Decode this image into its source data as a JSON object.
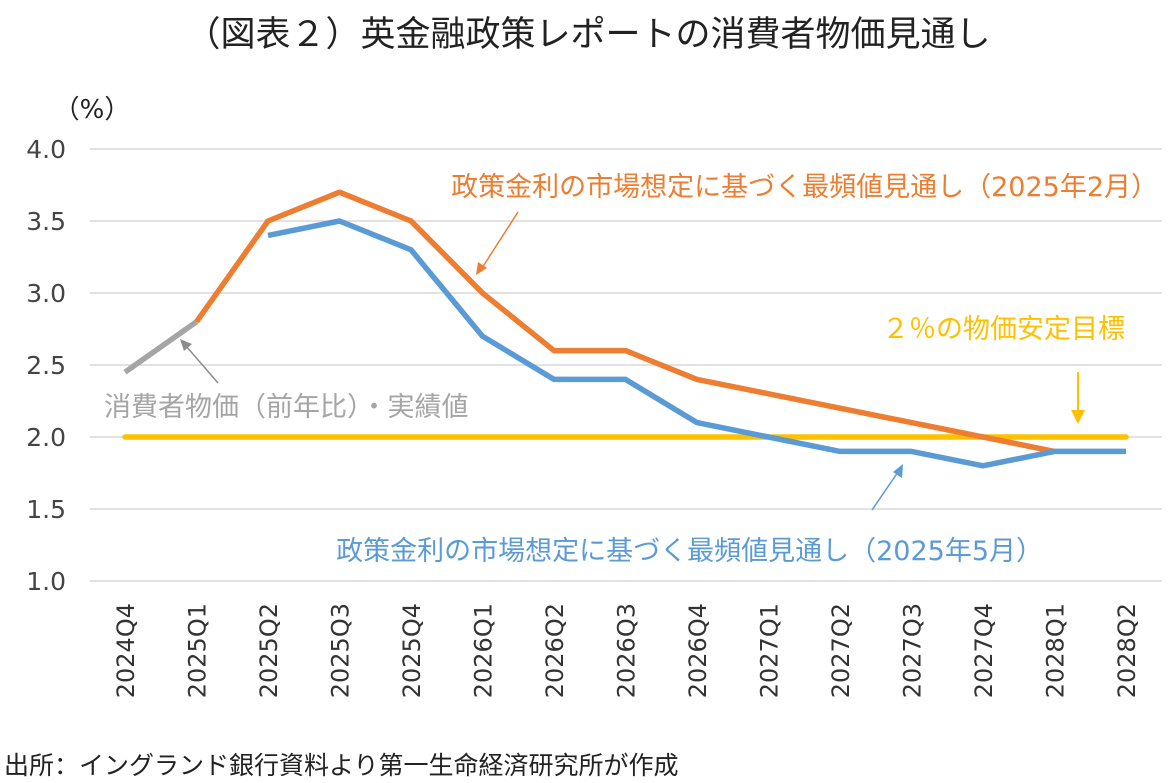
{
  "chart_data": {
    "type": "line",
    "title": "（図表２）英金融政策レポートの消費者物価見通し",
    "unit_label": "（%）",
    "categories": [
      "2024Q4",
      "2025Q1",
      "2025Q2",
      "2025Q3",
      "2025Q4",
      "2026Q1",
      "2026Q2",
      "2026Q3",
      "2026Q4",
      "2027Q1",
      "2027Q2",
      "2027Q3",
      "2027Q4",
      "2028Q1",
      "2028Q2"
    ],
    "ylim": [
      1.0,
      4.0
    ],
    "yticks": [
      "1.0",
      "1.5",
      "2.0",
      "2.5",
      "3.0",
      "3.5",
      "4.0"
    ],
    "grid": true,
    "series": [
      {
        "name": "消費者物価（前年比）・実績値",
        "color": "#A5A5A5",
        "values": [
          2.45,
          2.8,
          null,
          null,
          null,
          null,
          null,
          null,
          null,
          null,
          null,
          null,
          null,
          null,
          null
        ]
      },
      {
        "name": "政策金利の市場想定に基づく最頻値見通し（2025年2月）",
        "color": "#ED7D31",
        "values": [
          null,
          2.8,
          3.5,
          3.7,
          3.5,
          3.0,
          2.6,
          2.6,
          2.4,
          2.3,
          2.2,
          2.1,
          2.0,
          1.9,
          null
        ]
      },
      {
        "name": "政策金利の市場想定に基づく最頻値見通し（2025年5月）",
        "color": "#5B9BD5",
        "values": [
          null,
          null,
          3.4,
          3.5,
          3.3,
          2.7,
          2.4,
          2.4,
          2.1,
          2.0,
          1.9,
          1.9,
          1.8,
          1.9,
          1.9
        ]
      },
      {
        "name": "２％の物価安定目標",
        "color": "#FFC000",
        "values": [
          2.0,
          2.0,
          2.0,
          2.0,
          2.0,
          2.0,
          2.0,
          2.0,
          2.0,
          2.0,
          2.0,
          2.0,
          2.0,
          2.0,
          2.0
        ]
      }
    ]
  },
  "source": "出所：イングランド銀行資料より第一生命経済研究所が作成"
}
